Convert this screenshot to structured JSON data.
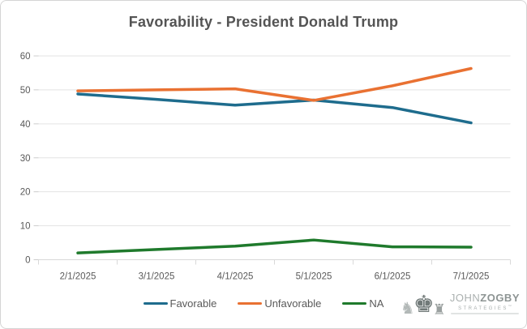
{
  "chart_data": {
    "type": "line",
    "title": "Favorability - President Donald Trump",
    "categories": [
      "2/1/2025",
      "3/1/2025",
      "4/1/2025",
      "5/1/2025",
      "6/1/2025",
      "7/1/2025"
    ],
    "series": [
      {
        "name": "Favorable",
        "color": "#1e6c8d",
        "values": [
          48.8,
          47.2,
          45.5,
          47.0,
          44.8,
          40.3
        ]
      },
      {
        "name": "Unfavorable",
        "color": "#e97132",
        "values": [
          49.7,
          50.0,
          50.3,
          46.9,
          51.2,
          56.3
        ]
      },
      {
        "name": "NA",
        "color": "#1f7a2c",
        "values": [
          2.0,
          3.0,
          4.0,
          5.8,
          3.8,
          3.7
        ]
      }
    ],
    "xlabel": "",
    "ylabel": "",
    "ylim": [
      0,
      60
    ],
    "yticks": [
      0,
      10,
      20,
      30,
      40,
      50,
      60
    ],
    "grid": true,
    "legend_position": "bottom",
    "text_color": "#595959",
    "grid_color": "#e3e3e3",
    "axis_color": "#d9d9d9"
  },
  "branding": {
    "name_part1": "JOHN",
    "name_part2": "ZOGBY",
    "subtitle": "STRATEGIES",
    "trademark": "™",
    "chess_icons": {
      "left": "knight",
      "middle": "king",
      "right": "rook"
    }
  }
}
